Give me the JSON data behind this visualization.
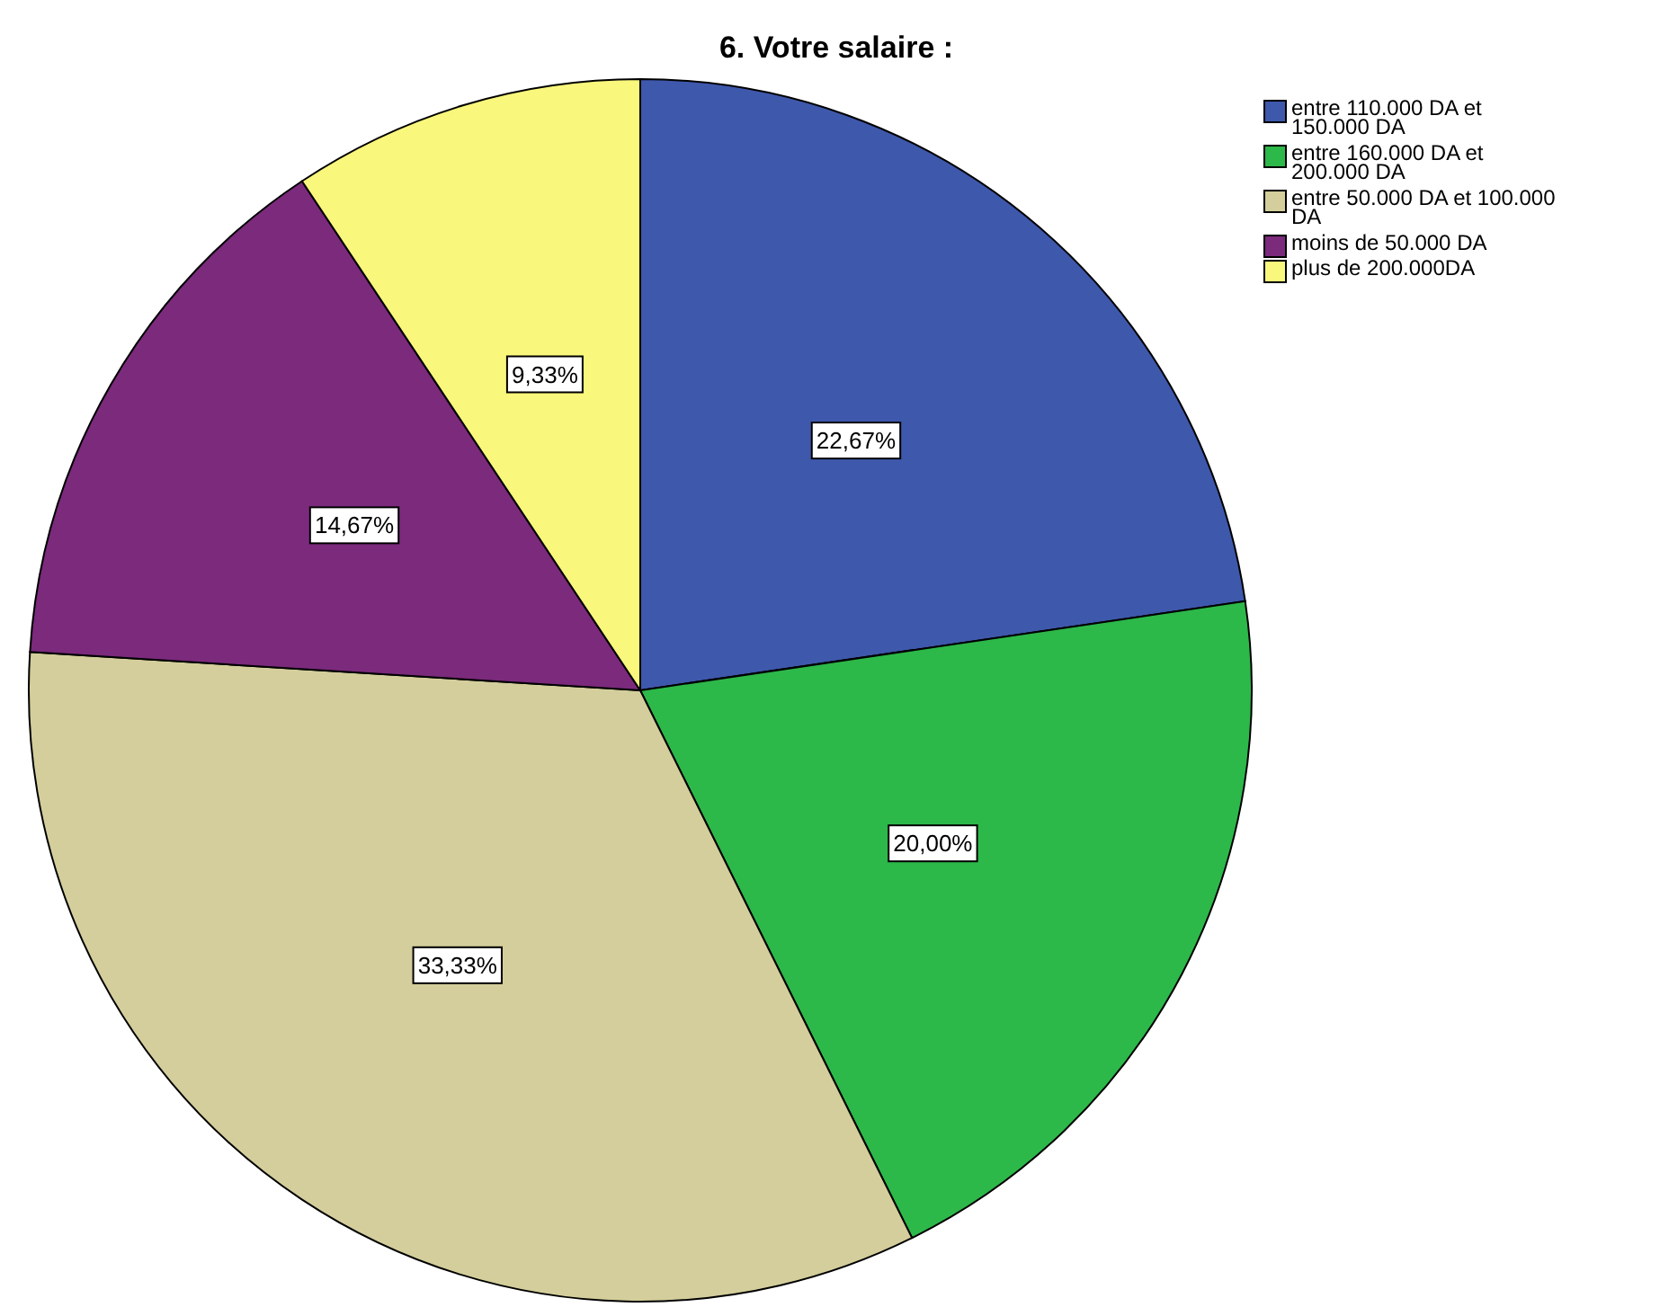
{
  "chart_data": {
    "type": "pie",
    "title": "6. Votre salaire :",
    "categories": [
      "entre 110.000 DA et 150.000 DA",
      "entre 160.000 DA et 200.000 DA",
      "entre 50.000 DA et 100.000 DA",
      "moins de 50.000 DA",
      "plus de 200.000DA"
    ],
    "values": [
      22.67,
      20.0,
      33.33,
      14.67,
      9.33
    ],
    "value_labels": [
      "22,67%",
      "20,00%",
      "33,33%",
      "14,67%",
      "9,33%"
    ],
    "colors": [
      "#3e58ac",
      "#2db84a",
      "#d3ce9b",
      "#7b2a7c",
      "#f9f77c"
    ],
    "legend": "top right"
  }
}
